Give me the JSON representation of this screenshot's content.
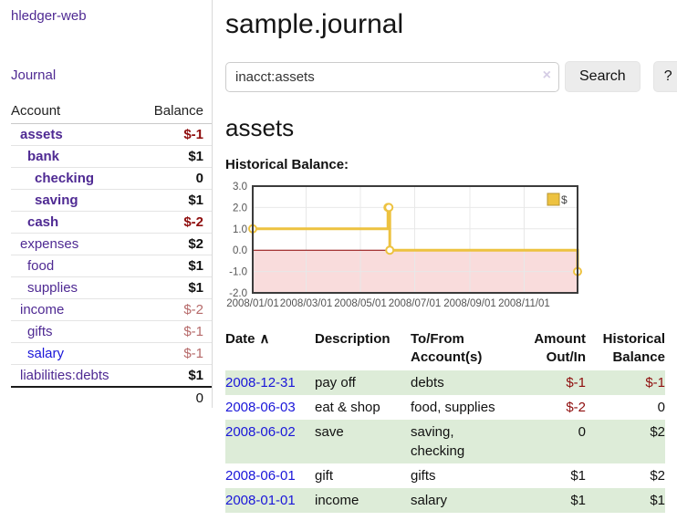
{
  "colors": {
    "link_purple": "#4f2a93",
    "link_blue": "#1a16d9",
    "negative_strong": "#8f0e0e",
    "negative_soft": "#b66a6a",
    "stripe_green": "#ddecd8",
    "series_gold": "#edc240"
  },
  "sidebar": {
    "brand": "hledger-web",
    "nav": {
      "journal": "Journal"
    },
    "accounts_table": {
      "headers": {
        "account": "Account",
        "balance": "Balance"
      },
      "rows": [
        {
          "name": "assets",
          "depth": 1,
          "bold": true,
          "link": "purple",
          "balance": "$-1",
          "balance_style": "neg-strong",
          "balance_bold": true
        },
        {
          "name": "bank",
          "depth": 2,
          "bold": true,
          "link": "purple",
          "balance": "$1",
          "balance_style": "pos",
          "balance_bold": true
        },
        {
          "name": "checking",
          "depth": 3,
          "bold": true,
          "link": "purple",
          "balance": "0",
          "balance_style": "pos",
          "balance_bold": true
        },
        {
          "name": "saving",
          "depth": 3,
          "bold": true,
          "link": "purple",
          "balance": "$1",
          "balance_style": "pos",
          "balance_bold": true
        },
        {
          "name": "cash",
          "depth": 2,
          "bold": true,
          "link": "purple",
          "balance": "$-2",
          "balance_style": "neg-strong",
          "balance_bold": true
        },
        {
          "name": "expenses",
          "depth": 1,
          "bold": false,
          "link": "purple",
          "balance": "$2",
          "balance_style": "pos",
          "balance_bold": true
        },
        {
          "name": "food",
          "depth": 2,
          "bold": false,
          "link": "purple",
          "balance": "$1",
          "balance_style": "pos",
          "balance_bold": true
        },
        {
          "name": "supplies",
          "depth": 2,
          "bold": false,
          "link": "purple",
          "balance": "$1",
          "balance_style": "pos",
          "balance_bold": true
        },
        {
          "name": "income",
          "depth": 1,
          "bold": false,
          "link": "purple",
          "balance": "$-2",
          "balance_style": "neg-soft",
          "balance_bold": false
        },
        {
          "name": "gifts",
          "depth": 2,
          "bold": false,
          "link": "purple",
          "balance": "$-1",
          "balance_style": "neg-soft",
          "balance_bold": false
        },
        {
          "name": "salary",
          "depth": 2,
          "bold": false,
          "link": "blue",
          "balance": "$-1",
          "balance_style": "neg-soft",
          "balance_bold": false
        },
        {
          "name": "liabilities:debts",
          "depth": 1,
          "bold": false,
          "link": "purple",
          "balance": "$1",
          "balance_style": "pos",
          "balance_bold": true
        }
      ],
      "total": "0"
    }
  },
  "header": {
    "title": "sample.journal"
  },
  "search": {
    "query": "inacct:assets",
    "clear_icon": "×",
    "search_label": "Search",
    "help_label": "?"
  },
  "account_page": {
    "heading": "assets",
    "chart_title": "Historical Balance:"
  },
  "chart_data": {
    "type": "line",
    "style": "step",
    "title": "Historical Balance",
    "legend": "$",
    "legend_position": "top-right",
    "grid": true,
    "xlim": [
      0,
      365
    ],
    "ylim": [
      -2,
      3
    ],
    "yticks": [
      3.0,
      2.0,
      1.0,
      0.0,
      -1.0,
      -2.0
    ],
    "ytick_labels": [
      "3.0",
      "2.0",
      "1.0",
      "0.0",
      "-1.0",
      "-2.0"
    ],
    "xticks": [
      {
        "day": 0,
        "label": "2008/01/01"
      },
      {
        "day": 60,
        "label": "2008/03/01"
      },
      {
        "day": 121,
        "label": "2008/05/01"
      },
      {
        "day": 182,
        "label": "2008/07/01"
      },
      {
        "day": 244,
        "label": "2008/09/01"
      },
      {
        "day": 305,
        "label": "2008/11/01"
      }
    ],
    "series": [
      {
        "name": "$",
        "color": "#edc240",
        "points": [
          {
            "date": "2008-01-01",
            "day": 0,
            "value": 1
          },
          {
            "date": "2008-06-01",
            "day": 152,
            "value": 2
          },
          {
            "date": "2008-06-02",
            "day": 153,
            "value": 2
          },
          {
            "date": "2008-06-03",
            "day": 154,
            "value": 0
          },
          {
            "date": "2008-12-31",
            "day": 365,
            "value": -1
          }
        ]
      }
    ],
    "negative_region_fill": "#f9dcdc",
    "zero_line_color": "#8b0000",
    "gridline_color": "#e8e8e8",
    "border_color": "#3b3b3b"
  },
  "register_table": {
    "sort_indicator": "∧",
    "headers": [
      {
        "lines": [
          "Date"
        ],
        "align": "left",
        "sortable": true
      },
      {
        "lines": [
          "Description"
        ],
        "align": "left"
      },
      {
        "lines": [
          "To/From",
          "Account(s)"
        ],
        "align": "left"
      },
      {
        "lines": [
          "Amount",
          "Out/In"
        ],
        "align": "right"
      },
      {
        "lines": [
          "Historical",
          "Balance"
        ],
        "align": "right"
      }
    ],
    "rows": [
      {
        "date": "2008-12-31",
        "description": "pay off",
        "accounts": "debts",
        "amount": "$-1",
        "amount_negative": true,
        "balance": "$-1",
        "balance_negative": true
      },
      {
        "date": "2008-06-03",
        "description": "eat & shop",
        "accounts": "food, supplies",
        "amount": "$-2",
        "amount_negative": true,
        "balance": "0",
        "balance_negative": false
      },
      {
        "date": "2008-06-02",
        "description": "save",
        "accounts": "saving, checking",
        "amount": "0",
        "amount_negative": false,
        "balance": "$2",
        "balance_negative": false
      },
      {
        "date": "2008-06-01",
        "description": "gift",
        "accounts": "gifts",
        "amount": "$1",
        "amount_negative": false,
        "balance": "$2",
        "balance_negative": false
      },
      {
        "date": "2008-01-01",
        "description": "income",
        "accounts": "salary",
        "amount": "$1",
        "amount_negative": false,
        "balance": "$1",
        "balance_negative": false
      }
    ]
  }
}
